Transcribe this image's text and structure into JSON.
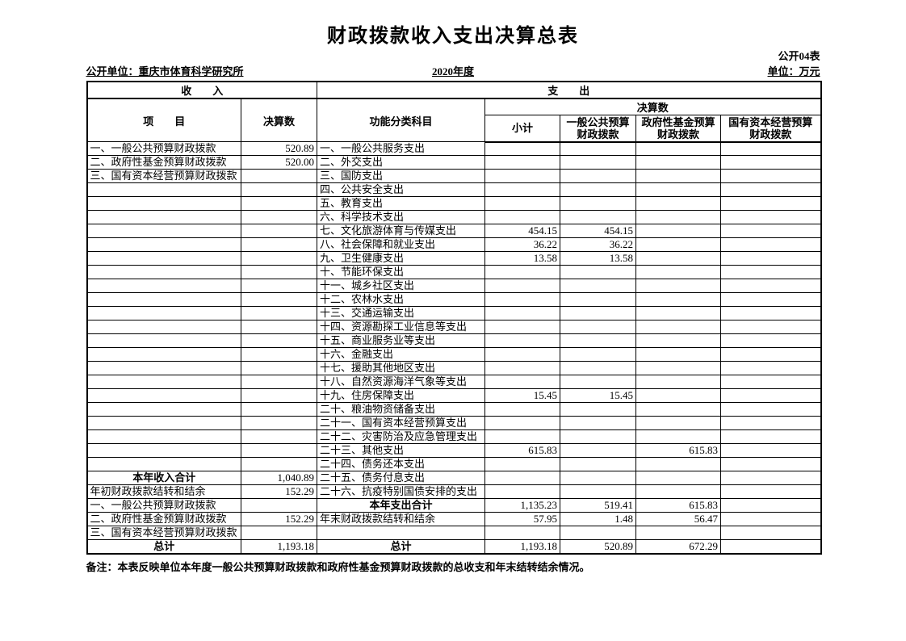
{
  "page": {
    "title": "财政拨款收入支出决算总表",
    "table_code": "公开04表",
    "unit_label": "公开单位：重庆市体育科学研究所",
    "year": "2020年度",
    "unit_of_measure": "单位：万元",
    "note": "备注：本表反映单位本年度一般公共预算财政拨款和政府性基金预算财政拨款的总收支和年末结转结余情况。"
  },
  "table": {
    "header": {
      "income_group": "收　　入",
      "expense_group": "支　　出",
      "income_item_col": "项　　目",
      "income_value_col": "决算数",
      "expense_item_col": "功能分类科目",
      "expense_value_group": "决算数",
      "expense_cols": [
        "小计",
        "一般公共预算\n财政拨款",
        "政府性基金预算\n财政拨款",
        "国有资本经营预算\n财政拨款"
      ]
    },
    "rows": [
      {
        "income": "一、一般公共预算财政拨款",
        "iv": "520.89",
        "expense": "一、一般公共服务支出",
        "vals": [
          "",
          "",
          "",
          ""
        ]
      },
      {
        "income": "二、政府性基金预算财政拨款",
        "iv": "520.00",
        "expense": "二、外交支出",
        "vals": [
          "",
          "",
          "",
          ""
        ]
      },
      {
        "income": "三、国有资本经营预算财政拨款",
        "iv": "",
        "expense": "三、国防支出",
        "vals": [
          "",
          "",
          "",
          ""
        ]
      },
      {
        "income": "",
        "iv": "",
        "expense": "四、公共安全支出",
        "vals": [
          "",
          "",
          "",
          ""
        ]
      },
      {
        "income": "",
        "iv": "",
        "expense": "五、教育支出",
        "vals": [
          "",
          "",
          "",
          ""
        ]
      },
      {
        "income": "",
        "iv": "",
        "expense": "六、科学技术支出",
        "vals": [
          "",
          "",
          "",
          ""
        ]
      },
      {
        "income": "",
        "iv": "",
        "expense": "七、文化旅游体育与传媒支出",
        "vals": [
          "454.15",
          "454.15",
          "",
          ""
        ]
      },
      {
        "income": "",
        "iv": "",
        "expense": "八、社会保障和就业支出",
        "vals": [
          "36.22",
          "36.22",
          "",
          ""
        ]
      },
      {
        "income": "",
        "iv": "",
        "expense": "九、卫生健康支出",
        "vals": [
          "13.58",
          "13.58",
          "",
          ""
        ]
      },
      {
        "income": "",
        "iv": "",
        "expense": "十、节能环保支出",
        "vals": [
          "",
          "",
          "",
          ""
        ]
      },
      {
        "income": "",
        "iv": "",
        "expense": "十一、城乡社区支出",
        "vals": [
          "",
          "",
          "",
          ""
        ]
      },
      {
        "income": "",
        "iv": "",
        "expense": "十二、农林水支出",
        "vals": [
          "",
          "",
          "",
          ""
        ]
      },
      {
        "income": "",
        "iv": "",
        "expense": "十三、交通运输支出",
        "vals": [
          "",
          "",
          "",
          ""
        ]
      },
      {
        "income": "",
        "iv": "",
        "expense": "十四、资源勘探工业信息等支出",
        "vals": [
          "",
          "",
          "",
          ""
        ]
      },
      {
        "income": "",
        "iv": "",
        "expense": "十五、商业服务业等支出",
        "vals": [
          "",
          "",
          "",
          ""
        ]
      },
      {
        "income": "",
        "iv": "",
        "expense": "十六、金融支出",
        "vals": [
          "",
          "",
          "",
          ""
        ]
      },
      {
        "income": "",
        "iv": "",
        "expense": "十七、援助其他地区支出",
        "vals": [
          "",
          "",
          "",
          ""
        ]
      },
      {
        "income": "",
        "iv": "",
        "expense": "十八、自然资源海洋气象等支出",
        "vals": [
          "",
          "",
          "",
          ""
        ]
      },
      {
        "income": "",
        "iv": "",
        "expense": "十九、住房保障支出",
        "vals": [
          "15.45",
          "15.45",
          "",
          ""
        ]
      },
      {
        "income": "",
        "iv": "",
        "expense": "二十、粮油物资储备支出",
        "vals": [
          "",
          "",
          "",
          ""
        ]
      },
      {
        "income": "",
        "iv": "",
        "expense": "二十一、国有资本经营预算支出",
        "vals": [
          "",
          "",
          "",
          ""
        ]
      },
      {
        "income": "",
        "iv": "",
        "expense": "二十二、灾害防治及应急管理支出",
        "vals": [
          "",
          "",
          "",
          ""
        ]
      },
      {
        "income": "",
        "iv": "",
        "expense": "二十三、其他支出",
        "vals": [
          "615.83",
          "",
          "615.83",
          ""
        ]
      },
      {
        "income": "",
        "iv": "",
        "expense": "二十四、债务还本支出",
        "vals": [
          "",
          "",
          "",
          ""
        ]
      },
      {
        "income": "本年收入合计",
        "iSum": true,
        "iv": "1,040.89",
        "expense": "二十五、债务付息支出",
        "vals": [
          "",
          "",
          "",
          ""
        ]
      },
      {
        "income": "年初财政拨款结转和结余",
        "iv": "152.29",
        "expense": "二十六、抗疫特别国债安排的支出",
        "vals": [
          "",
          "",
          "",
          ""
        ]
      },
      {
        "income": "一、一般公共预算财政拨款",
        "iv": "",
        "expense": "本年支出合计",
        "eSum": true,
        "vals": [
          "1,135.23",
          "519.41",
          "615.83",
          ""
        ]
      },
      {
        "income": "二、政府性基金预算财政拨款",
        "iv": "152.29",
        "expense": "年末财政拨款结转和结余",
        "vals": [
          "57.95",
          "1.48",
          "56.47",
          ""
        ]
      },
      {
        "income": "三、国有资本经营预算财政拨款",
        "iv": "",
        "expense": "",
        "vals": [
          "",
          "",
          "",
          ""
        ]
      },
      {
        "income": "总计",
        "iSum": true,
        "iv": "1,193.18",
        "expense": "总计",
        "eSum": true,
        "vals": [
          "1,193.18",
          "520.89",
          "672.29",
          ""
        ]
      }
    ]
  }
}
